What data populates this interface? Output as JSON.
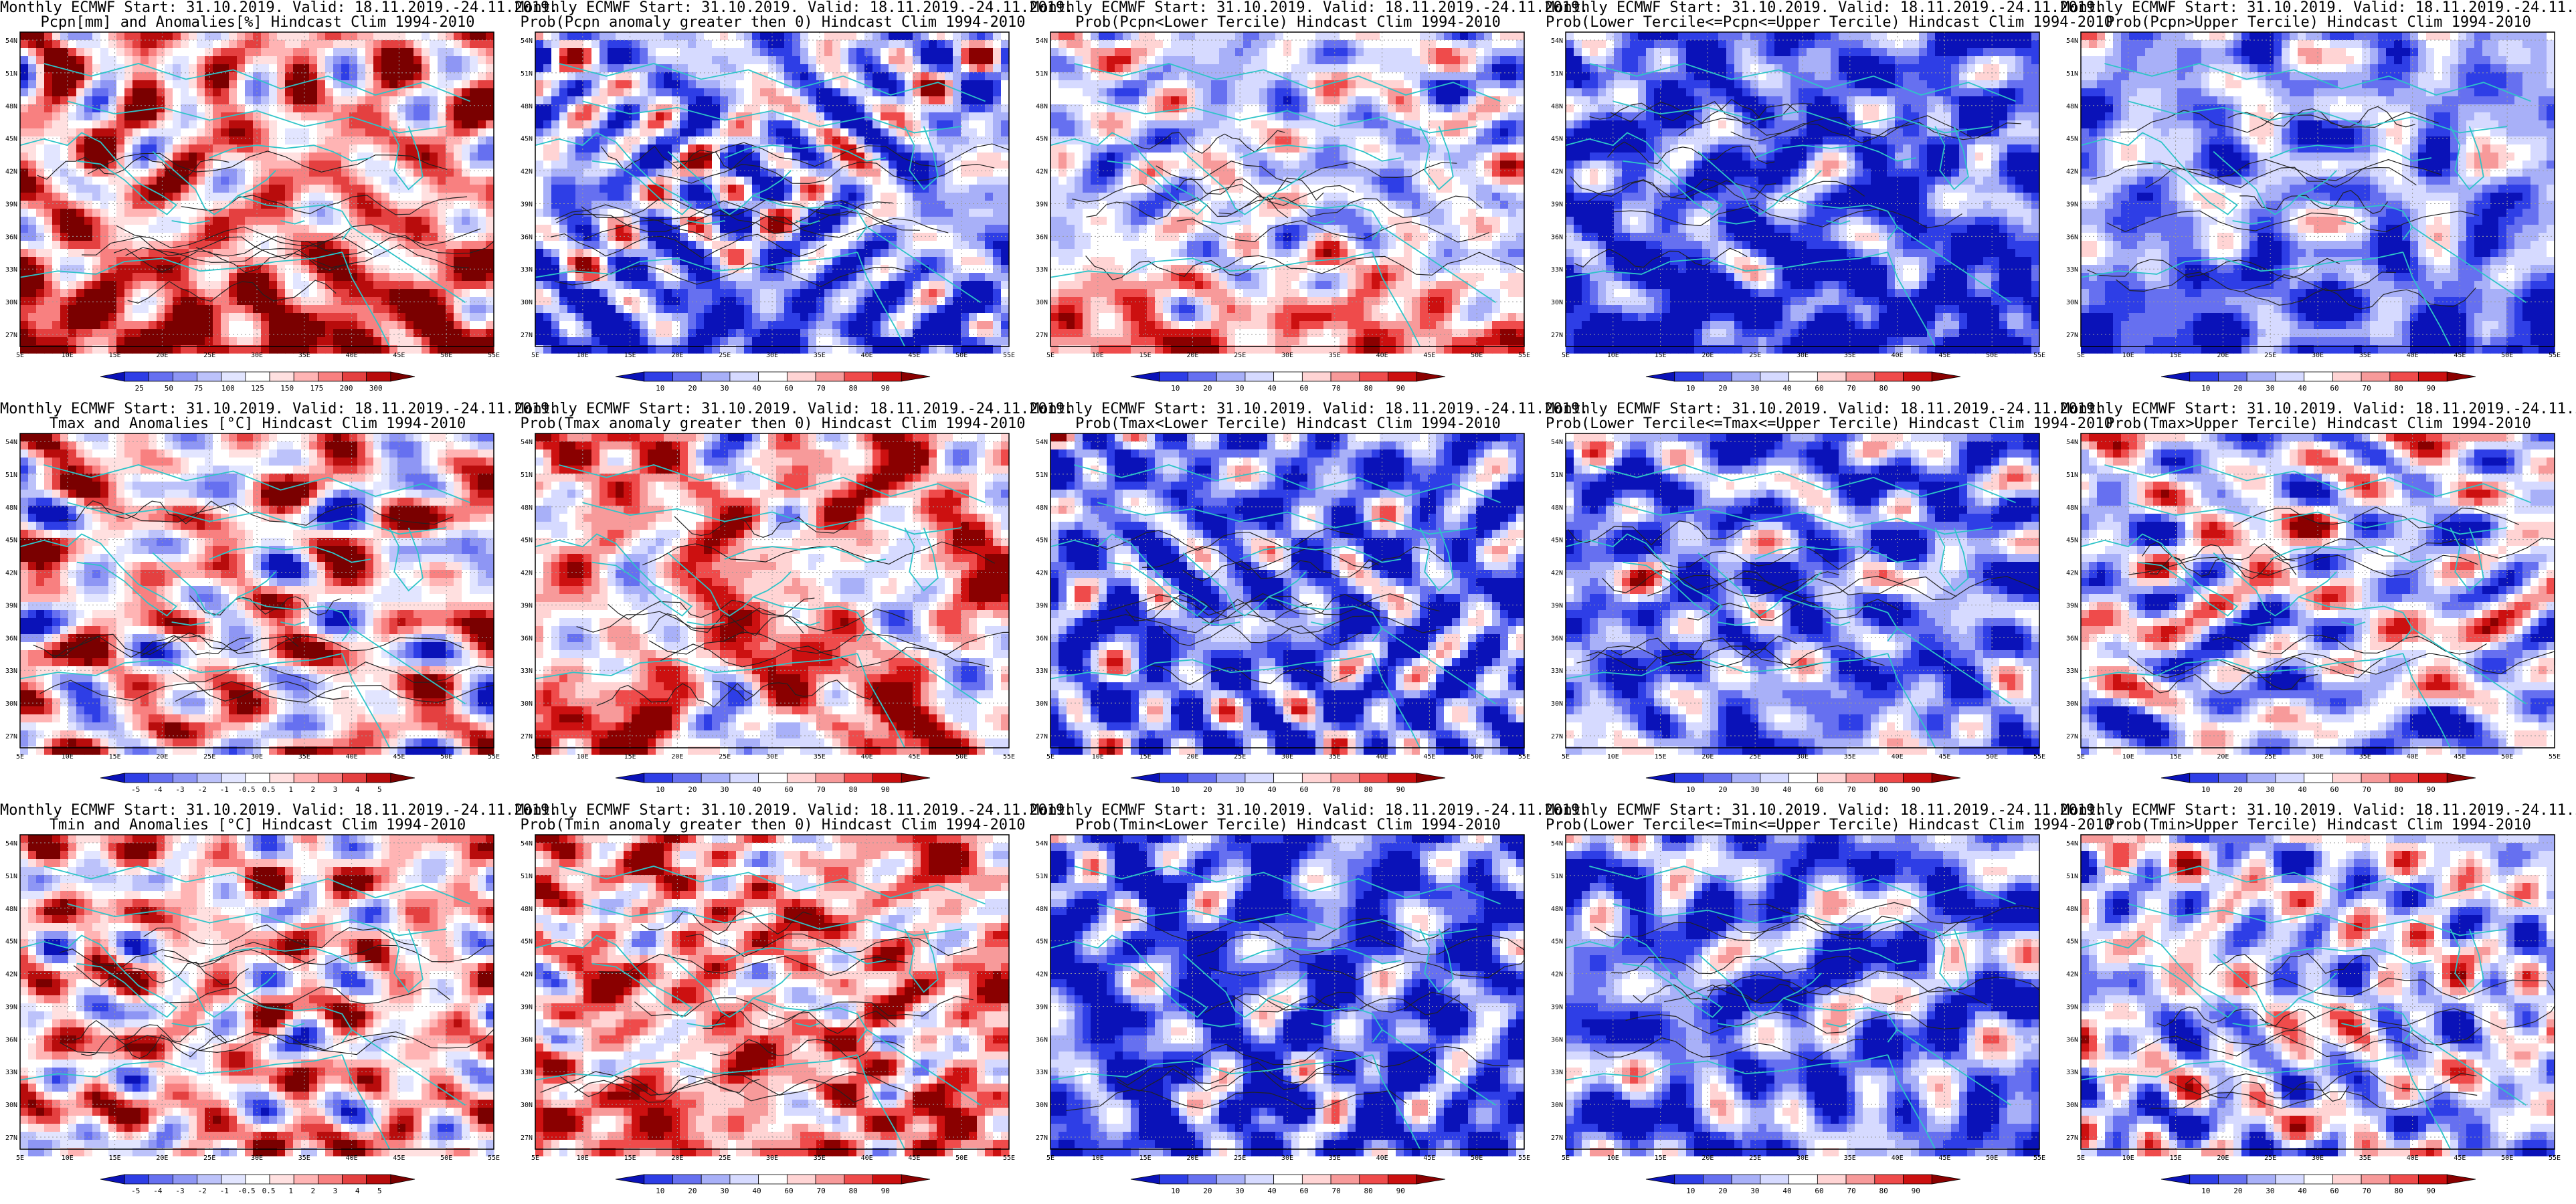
{
  "header_prefix": "Monthly ECMWF Start: 31.10.2019. Valid: 18.11.2019.-24.11.2019.",
  "lat_ticks": [
    "54N",
    "51N",
    "48N",
    "45N",
    "42N",
    "39N",
    "36N",
    "33N",
    "30N",
    "27N"
  ],
  "lon_ticks": [
    "5E",
    "10E",
    "15E",
    "20E",
    "25E",
    "30E",
    "35E",
    "40E",
    "45E",
    "50E",
    "55E"
  ],
  "colors": {
    "coast": "#2ec4c8",
    "contour": "#222222",
    "prob_scale": [
      "#0a12b8",
      "#2e3ee6",
      "#6670f0",
      "#a8b0f8",
      "#d6daff",
      "#ffffff",
      "#ffd4d4",
      "#f79a9a",
      "#ef4b4b",
      "#cc1010",
      "#8a0000"
    ],
    "anom_scale": [
      "#0a12b8",
      "#2e3ee6",
      "#6670f0",
      "#8e96f4",
      "#bcc2fa",
      "#e2e5ff",
      "#ffffff",
      "#ffe0e0",
      "#ffb4b4",
      "#f88080",
      "#e44040",
      "#b80c0c",
      "#7a0000"
    ]
  },
  "colorbars": {
    "precip_anom": [
      "25",
      "50",
      "75",
      "100",
      "125",
      "150",
      "175",
      "200",
      "300"
    ],
    "prob": [
      "10",
      "20",
      "30",
      "40",
      "60",
      "70",
      "80",
      "90"
    ],
    "temp_anom": [
      "-5",
      "-4",
      "-3",
      "-2",
      "-1",
      "-0.5",
      "0.5",
      "1",
      "2",
      "3",
      "4",
      "5"
    ]
  },
  "panels": [
    {
      "subtitle": "Pcpn[mm] and Anomalies[%] Hindcast Clim 1994-2010",
      "bar": "precip_anom",
      "bias": 0.35,
      "seed": 11,
      "south": 0.8,
      "contour": true
    },
    {
      "subtitle": "Prob(Pcpn anomaly greater then 0) Hindcast Clim 1994-2010",
      "bar": "prob",
      "bias": -0.35,
      "seed": 12,
      "south": -0.7,
      "contour": true
    },
    {
      "subtitle": "Prob(Pcpn<Lower Tercile) Hindcast Clim 1994-2010",
      "bar": "prob",
      "bias": -0.2,
      "seed": 13,
      "south": 0.9,
      "contour": true
    },
    {
      "subtitle": "Prob(Lower Tercile<=Pcpn<=Upper Tercile) Hindcast Clim 1994-2010",
      "bar": "prob",
      "bias": -0.75,
      "seed": 14,
      "south": -0.6,
      "contour": true
    },
    {
      "subtitle": "Prob(Pcpn>Upper Tercile) Hindcast Clim 1994-2010",
      "bar": "prob",
      "bias": -0.45,
      "seed": 15,
      "south": -0.6,
      "contour": true
    },
    {
      "subtitle": "Tmax and Anomalies [°C] Hindcast Clim 1994-2010",
      "bar": "temp_anom",
      "bias": 0.15,
      "seed": 21,
      "south": 0.0,
      "contour": true
    },
    {
      "subtitle": "Prob(Tmax anomaly greater then 0) Hindcast Clim 1994-2010",
      "bar": "prob",
      "bias": 0.3,
      "seed": 22,
      "south": 0.1,
      "contour": true
    },
    {
      "subtitle": "Prob(Tmax<Lower Tercile) Hindcast Clim 1994-2010",
      "bar": "prob",
      "bias": -0.65,
      "seed": 23,
      "south": 0.0,
      "contour": true
    },
    {
      "subtitle": "Prob(Lower Tercile<=Tmax<=Upper Tercile) Hindcast Clim 1994-2010",
      "bar": "prob",
      "bias": -0.6,
      "seed": 24,
      "south": 0.1,
      "contour": true
    },
    {
      "subtitle": "Prob(Tmax>Upper Tercile) Hindcast Clim 1994-2010",
      "bar": "prob",
      "bias": -0.15,
      "seed": 25,
      "south": -0.3,
      "contour": true
    },
    {
      "subtitle": "Tmin and Anomalies [°C] Hindcast Clim 1994-2010",
      "bar": "temp_anom",
      "bias": 0.2,
      "seed": 31,
      "south": 0.05,
      "contour": true
    },
    {
      "subtitle": "Prob(Tmin anomaly greater then 0) Hindcast Clim 1994-2010",
      "bar": "prob",
      "bias": 0.35,
      "seed": 32,
      "south": 0.2,
      "contour": true
    },
    {
      "subtitle": "Prob(Tmin<Lower Tercile) Hindcast Clim 1994-2010",
      "bar": "prob",
      "bias": -0.75,
      "seed": 33,
      "south": -0.1,
      "contour": true
    },
    {
      "subtitle": "Prob(Lower Tercile<=Tmin<=Upper Tercile) Hindcast Clim 1994-2010",
      "bar": "prob",
      "bias": -0.6,
      "seed": 34,
      "south": 0.0,
      "contour": true
    },
    {
      "subtitle": "Prob(Tmin>Upper Tercile) Hindcast Clim 1994-2010",
      "bar": "prob",
      "bias": -0.2,
      "seed": 35,
      "south": -0.1,
      "contour": true
    }
  ]
}
